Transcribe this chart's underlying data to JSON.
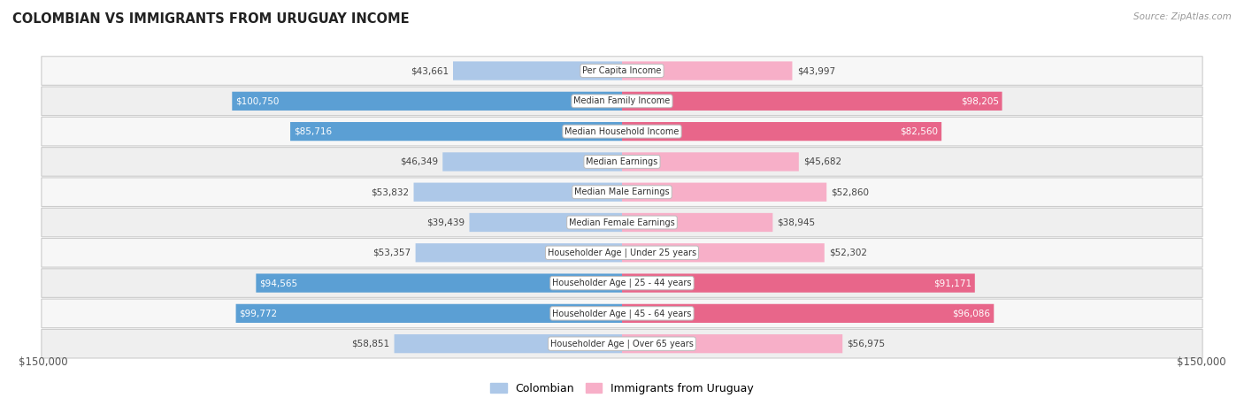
{
  "title": "COLOMBIAN VS IMMIGRANTS FROM URUGUAY INCOME",
  "source": "Source: ZipAtlas.com",
  "categories": [
    "Per Capita Income",
    "Median Family Income",
    "Median Household Income",
    "Median Earnings",
    "Median Male Earnings",
    "Median Female Earnings",
    "Householder Age | Under 25 years",
    "Householder Age | 25 - 44 years",
    "Householder Age | 45 - 64 years",
    "Householder Age | Over 65 years"
  ],
  "colombian": [
    43661,
    100750,
    85716,
    46349,
    53832,
    39439,
    53357,
    94565,
    99772,
    58851
  ],
  "uruguay": [
    43997,
    98205,
    82560,
    45682,
    52860,
    38945,
    52302,
    91171,
    96086,
    56975
  ],
  "col_light": "#adc8e8",
  "col_dark": "#5b9fd4",
  "uru_light": "#f7afc8",
  "uru_dark": "#e8668a",
  "row_bg_even": "#f7f7f7",
  "row_bg_odd": "#efefef",
  "max_val": 150000,
  "dark_threshold": 65000,
  "legend_colombian": "Colombian",
  "legend_uruguay": "Immigrants from Uruguay"
}
